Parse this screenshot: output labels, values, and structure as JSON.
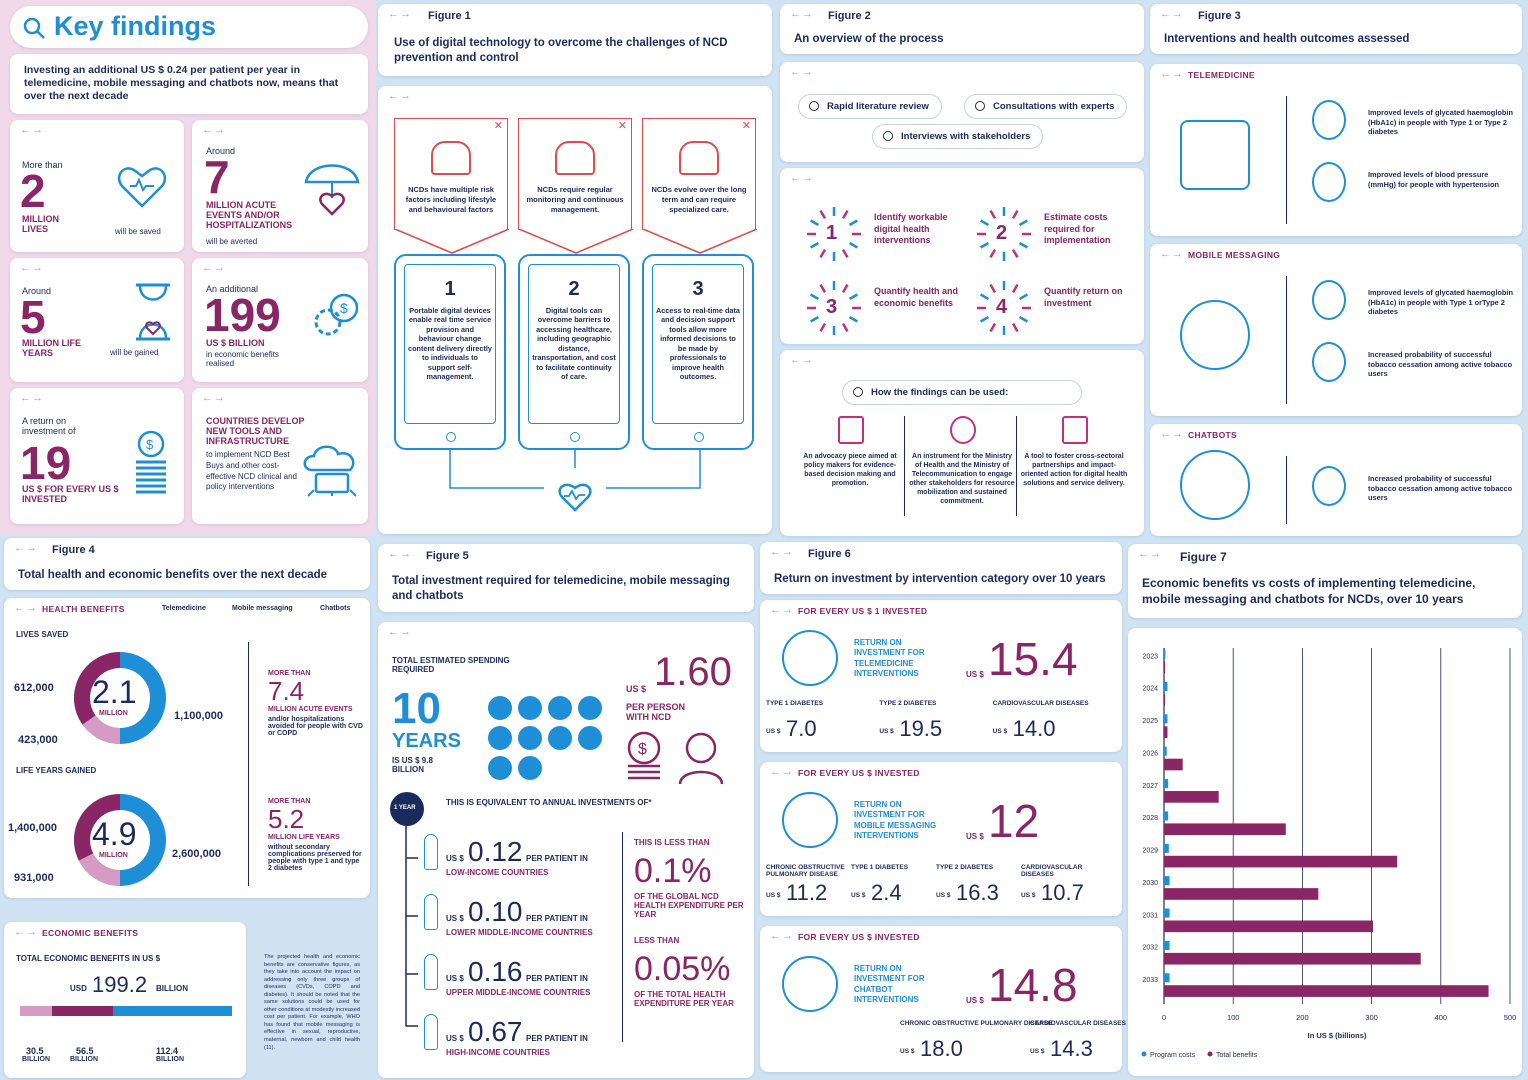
{
  "key": {
    "title": "Key findings",
    "intro": "Investing an additional US $ 0.24 per patient per year in telemedicine, mobile messaging and chatbots now, means that over the next decade",
    "c1": {
      "pre": "More than",
      "num": "2",
      "unit": "MILLION LIVES",
      "post": "will be saved"
    },
    "c2": {
      "pre": "Around",
      "num": "7",
      "unit": "MILLION ACUTE EVENTS AND/OR HOSPITALIZATIONS",
      "post": "will be averted"
    },
    "c3": {
      "pre": "Around",
      "num": "5",
      "unit": "MILLION LIFE YEARS",
      "post": "will be gained"
    },
    "c4": {
      "pre": "An additional",
      "num": "199",
      "unit": "US $ BILLION",
      "post": "in economic benefits realised"
    },
    "c5": {
      "pre": "A return on investment of",
      "num": "19",
      "unit": "US $ FOR EVERY US $ INVESTED"
    },
    "c6": {
      "unit": "COUNTRIES DEVELOP NEW TOOLS AND INFRASTRUCTURE",
      "post": "to implement NCD Best Buys and other cost-effective NCD clinical and policy interventions"
    }
  },
  "fig1": {
    "label": "Figure 1",
    "title": "Use of digital technology to overcome the challenges of NCD prevention and control",
    "challenges": [
      "NCDs have multiple risk factors including lifestyle and behavioural factors",
      "NCDs require regular monitoring and continuous management.",
      "NCDs evolve over the long term and can require specialized care."
    ],
    "solutions": [
      {
        "n": "1",
        "t": "Portable digital devices enable real time service provision and behaviour change content delivery directly to individuals to support self-management."
      },
      {
        "n": "2",
        "t": "Digital tools can overcome barriers to accessing healthcare, including geographic distance, transportation, and cost to facilitate continuity of care."
      },
      {
        "n": "3",
        "t": "Access to real-time data and decision support tools allow more informed decisions to be made by professionals to improve health outcomes."
      }
    ]
  },
  "fig2": {
    "label": "Figure 2",
    "title": "An overview of the process",
    "pills": [
      "Rapid literature review",
      "Consultations with experts",
      "Interviews with stakeholders"
    ],
    "steps": [
      {
        "n": "1",
        "t": "Identify workable digital health interventions"
      },
      {
        "n": "2",
        "t": "Estimate costs required for implementation"
      },
      {
        "n": "3",
        "t": "Quantify health and economic benefits"
      },
      {
        "n": "4",
        "t": "Quantify return on investment"
      }
    ],
    "uses_title": "How the findings can be used:",
    "uses": [
      "An advocacy piece aimed at policy makers for evidence-based decision making and promotion.",
      "An instrument for the Ministry of Health and the Ministry of Telecommunication to engage other stakeholders for resource mobilization and sustained commitment.",
      "A tool to foster cross-sectoral partnerships and impact-oriented action for digital health solutions and service delivery."
    ]
  },
  "fig3": {
    "label": "Figure 3",
    "title": "Interventions and health outcomes assessed",
    "groups": [
      {
        "name": "TELEMEDICINE",
        "items": [
          "Improved levels of glycated haemoglobin (HbA1c) in people with Type 1 or Type 2 diabetes",
          "Improved levels of blood pressure (mmHg) for people with hypertension"
        ]
      },
      {
        "name": "MOBILE MESSAGING",
        "items": [
          "Improved levels of glycated haemoglobin (HbA1c) in people with Type 1 orType 2 diabetes",
          "Increased probability of successful tobacco cessation among active tobacco users"
        ]
      },
      {
        "name": "CHATBOTS",
        "items": [
          "Increased probability of successful tobacco cessation among active tobacco users"
        ]
      }
    ]
  },
  "fig4": {
    "label": "Figure 4",
    "title": "Total health and economic benefits over the next decade",
    "health": "HEALTH BENEFITS",
    "legend": [
      "Telemedicine",
      "Mobile messaging",
      "Chatbots"
    ],
    "lives": {
      "label": "LIVES SAVED",
      "center": "2.1",
      "unit": "MILLION",
      "a": "612,000",
      "b": "423,000",
      "c": "1,100,000"
    },
    "years": {
      "label": "LIFE YEARS GAINED",
      "center": "4.9",
      "unit": "MILLION",
      "a": "1,400,000",
      "b": "931,000",
      "c": "2,600,000"
    },
    "side1": {
      "pre": "MORE THAN",
      "num": "7.4",
      "t1": "MILLION ACUTE EVENTS",
      "t2": "and/or hospitalizations avoided for people with CVD or COPD"
    },
    "side2": {
      "pre": "MORE THAN",
      "num": "5.2",
      "t1": "MILLION LIFE YEARS",
      "t2": "without secondary complications preserved for people with type 1 and type 2 diabetes"
    },
    "econ": "ECONOMIC BENEFITS",
    "econ_sub": "TOTAL ECONOMIC BENEFITS IN US $",
    "econ_pre": "USD",
    "econ_total": "199.2",
    "econ_unit": "BILLION",
    "econ_parts": [
      {
        "v": "30.5",
        "u": "BILLION"
      },
      {
        "v": "56.5",
        "u": "BILLION"
      },
      {
        "v": "112.4",
        "u": "BILLION"
      }
    ],
    "note": "The projected health and economic benefits are conservative figures, as they take into account the impact on addressing only three groups of diseases (CVDs, COPD and diabetes). It should be noted that the same solutions could be used for other conditions at modestly increased cost per patient. For example, WHO has found that mobile messaging is effective in sexual, reproductive, maternal, newborn and child health (11)."
  },
  "fig5": {
    "label": "Figure 5",
    "title": "Total investment required for telemedicine, mobile messaging and chatbots",
    "tot": "TOTAL ESTIMATED SPENDING REQUIRED",
    "years": "10",
    "years_u": "YEARS",
    "is": "IS US $ 9.8 BILLION",
    "pp_pre": "US $",
    "pp": "1.60",
    "pp_u": "PER PERSON WITH NCD",
    "year1": "1 YEAR",
    "equiv": "THIS IS EQUIVALENT TO ANNUAL INVESTMENTS OF*",
    "rows": [
      {
        "v": "0.12",
        "g": "LOW-INCOME COUNTRIES"
      },
      {
        "v": "0.10",
        "g": "LOWER MIDDLE-INCOME COUNTRIES"
      },
      {
        "v": "0.16",
        "g": "UPPER MIDDLE-INCOME COUNTRIES"
      },
      {
        "v": "0.67",
        "g": "HIGH-INCOME COUNTRIES"
      }
    ],
    "per": "PER PATIENT IN",
    "us": "US $",
    "lt1": "THIS IS LESS THAN",
    "p1": "0.1%",
    "p1t": "OF THE GLOBAL NCD HEALTH EXPENDITURE PER YEAR",
    "lt2": "LESS THAN",
    "p2": "0.05%",
    "p2t": "OF THE TOTAL HEALTH EXPENDITURE PER YEAR"
  },
  "fig6": {
    "label": "Figure 6",
    "title": "Return on investment by intervention category over 10 years",
    "s1": {
      "h": "FOR EVERY US $ 1 INVESTED",
      "r": "RETURN ON INVESTMENT FOR TELEMEDICINE INTERVENTIONS",
      "v": "15.4",
      "items": [
        {
          "l": "TYPE 1 DIABETES",
          "v": "7.0"
        },
        {
          "l": "TYPE 2 DIABETES",
          "v": "19.5"
        },
        {
          "l": "CARDIOVASCULAR DISEASES",
          "v": "14.0"
        }
      ]
    },
    "s2": {
      "h": "FOR EVERY US $ INVESTED",
      "r": "RETURN ON INVESTMENT FOR MOBILE MESSAGING INTERVENTIONS",
      "v": "12",
      "items": [
        {
          "l": "CHRONIC OBSTRUCTIVE PULMONARY DISEASE",
          "v": "11.2"
        },
        {
          "l": "TYPE 1 DIABETES",
          "v": "2.4"
        },
        {
          "l": "TYPE 2 DIABETES",
          "v": "16.3"
        },
        {
          "l": "CARDIOVASCULAR DISEASES",
          "v": "10.7"
        }
      ]
    },
    "s3": {
      "h": "FOR EVERY US $ INVESTED",
      "r": "RETURN ON INVESTMENT FOR CHATBOT INTERVENTIONS",
      "v": "14.8",
      "items": [
        {
          "l": "CHRONIC OBSTRUCTIVE PULMONARY DISEASE",
          "v": "18.0"
        },
        {
          "l": "CARDIOVASCULAR DISEASES",
          "v": "14.3"
        }
      ]
    },
    "us": "US $"
  },
  "fig7": {
    "label": "Figure 7",
    "title": "Economic benefits vs costs of implementing telemedicine, mobile messaging and chatbots for NCDs, over 10 years"
  },
  "chart_data": {
    "type": "bar",
    "orientation": "horizontal",
    "categories": [
      "2023",
      "2024",
      "2025",
      "2026",
      "2027",
      "2028",
      "2029",
      "2030",
      "2031",
      "2032",
      "2033"
    ],
    "series": [
      {
        "name": "Program costs",
        "values": [
          2,
          5,
          5,
          4,
          6,
          6,
          7,
          8,
          8,
          8,
          8
        ]
      },
      {
        "name": "Total benefits",
        "values": [
          1,
          1,
          5,
          27,
          79,
          176,
          337,
          223,
          302,
          371,
          469
        ]
      }
    ],
    "xlabel": "In US $ (billions)",
    "ticks": [
      0,
      100,
      200,
      300,
      400,
      500
    ],
    "xlim": [
      0,
      500
    ],
    "grid": true,
    "legend": "bottom-left",
    "colors": {
      "Program costs": "#1e8fd6",
      "Total benefits": "#8a2566"
    }
  }
}
